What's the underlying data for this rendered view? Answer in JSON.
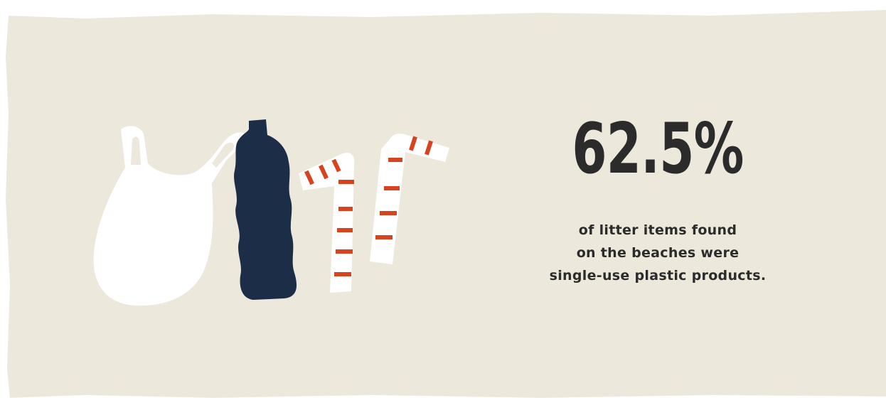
{
  "stat": {
    "value": "62.5%",
    "caption_lines": [
      "of litter items found",
      "on the beaches were",
      "single-use plastic products."
    ]
  },
  "illustration": {
    "items": [
      "plastic-bag-icon",
      "plastic-bottle-icon",
      "straw-icon",
      "straw-icon"
    ]
  },
  "colors": {
    "background": "#ece8dc",
    "text": "#2b2b2b",
    "bottle": "#1b2d47",
    "straw_stripe": "#d8431f",
    "bag": "#ffffff"
  }
}
